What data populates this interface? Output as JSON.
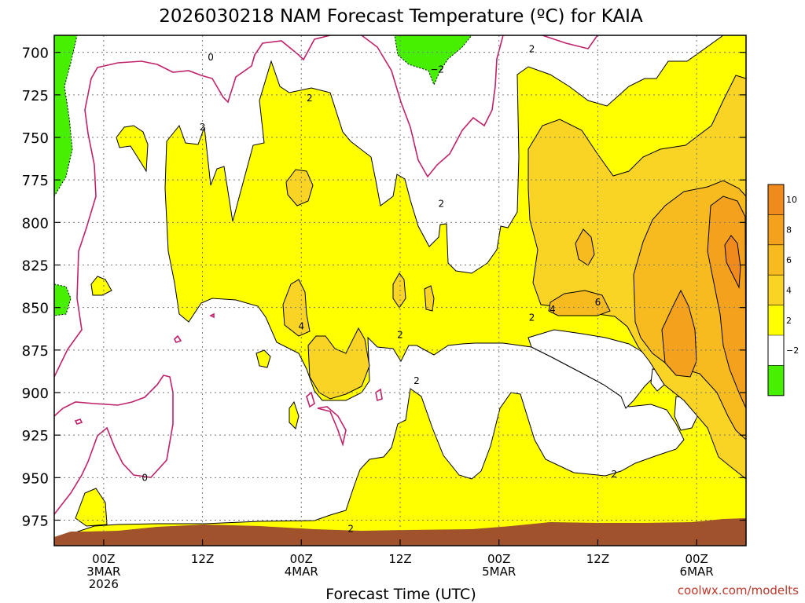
{
  "chart_data": {
    "type": "contour",
    "title": "2026030218 NAM Forecast Temperature (ºC) for KAIA",
    "xlabel": "Forecast Time (UTC)",
    "credit": "coolwx.com/modelts",
    "y_axis": {
      "ticks": [
        700,
        725,
        750,
        775,
        800,
        825,
        850,
        875,
        900,
        925,
        950,
        975
      ],
      "range": [
        690,
        990
      ],
      "inverted": true
    },
    "x_axis": {
      "range_hours": [
        0,
        84
      ],
      "ticks": [
        {
          "hour": 6,
          "lines": [
            "00Z",
            "3MAR",
            "2026"
          ]
        },
        {
          "hour": 18,
          "lines": [
            "12Z"
          ]
        },
        {
          "hour": 30,
          "lines": [
            "00Z",
            "4MAR"
          ]
        },
        {
          "hour": 42,
          "lines": [
            "12Z"
          ]
        },
        {
          "hour": 54,
          "lines": [
            "00Z",
            "5MAR"
          ]
        },
        {
          "hour": 66,
          "lines": [
            "12Z"
          ]
        },
        {
          "hour": 78,
          "lines": [
            "00Z",
            "6MAR"
          ]
        }
      ]
    },
    "grid": true,
    "colorbar": {
      "labels": [
        "10",
        "8",
        "6",
        "4",
        "2",
        "−2"
      ],
      "bands": [
        {
          "min": 10,
          "max": 12,
          "color": "#f08a1c"
        },
        {
          "min": 8,
          "max": 10,
          "color": "#f4a21e"
        },
        {
          "min": 6,
          "max": 8,
          "color": "#f7bb20"
        },
        {
          "min": 4,
          "max": 6,
          "color": "#fad425"
        },
        {
          "min": 2,
          "max": 4,
          "color": "#ffff00"
        },
        {
          "min": -2,
          "max": 2,
          "color": "#ffffff"
        },
        {
          "min": -4,
          "max": -2,
          "color": "#46f000"
        }
      ]
    },
    "contour_labels": [
      {
        "text": "0",
        "hour": 19,
        "p": 703
      },
      {
        "text": "2",
        "hour": 31,
        "p": 727
      },
      {
        "text": "2",
        "hour": 18,
        "p": 744
      },
      {
        "text": "−2",
        "hour": 46.5,
        "p": 710
      },
      {
        "text": "2",
        "hour": 58,
        "p": 698
      },
      {
        "text": "2",
        "hour": 47,
        "p": 789
      },
      {
        "text": "4",
        "hour": 30,
        "p": 861
      },
      {
        "text": "2",
        "hour": 42,
        "p": 866
      },
      {
        "text": "2",
        "hour": 44,
        "p": 893
      },
      {
        "text": "4",
        "hour": 60.5,
        "p": 851
      },
      {
        "text": "6",
        "hour": 66,
        "p": 847
      },
      {
        "text": "2",
        "hour": 58,
        "p": 856
      },
      {
        "text": "0",
        "hour": 11,
        "p": 950
      },
      {
        "text": "2",
        "hour": 68,
        "p": 948
      },
      {
        "text": "2",
        "hour": 36,
        "p": 980
      }
    ],
    "ground_color": "#a0522d",
    "ground_pressure_approx": 983
  }
}
